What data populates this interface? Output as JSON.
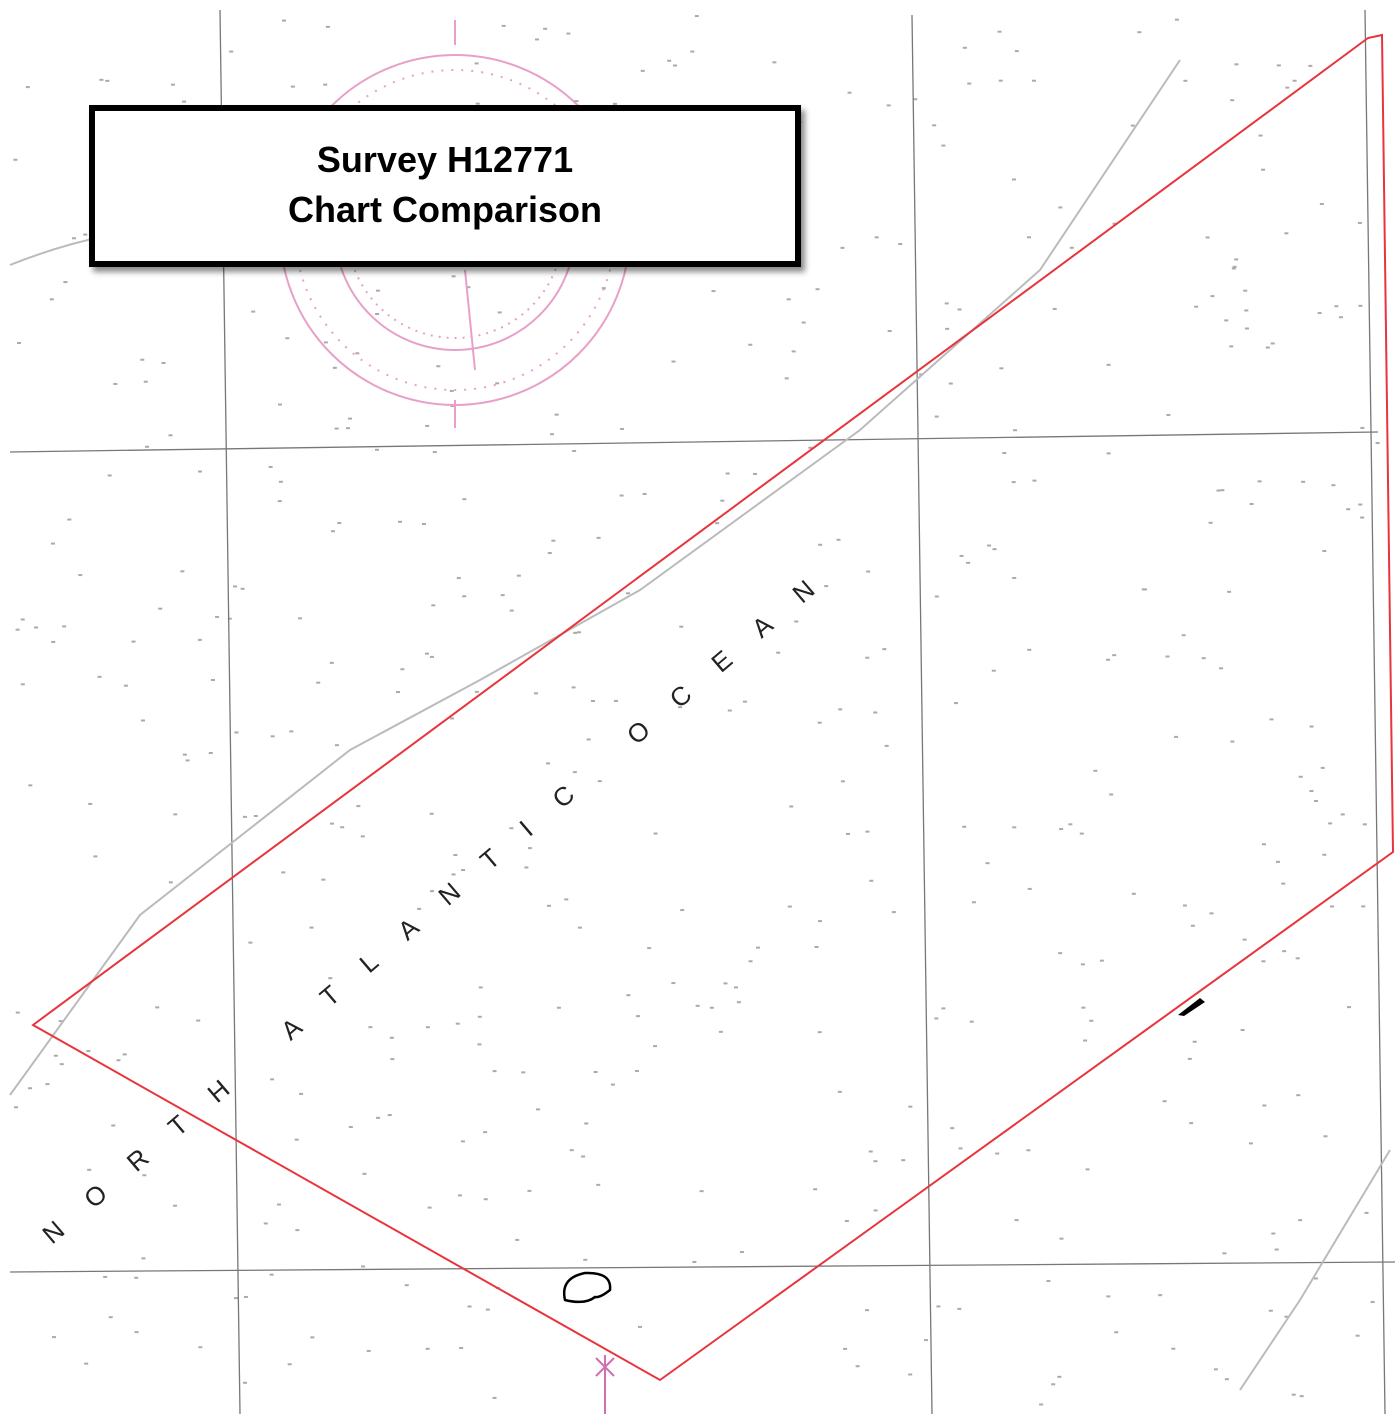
{
  "header": {
    "title_lines": [
      "Survey H12771",
      "Chart Comparison"
    ]
  },
  "map": {
    "label": "NORTH ATLANTIC OCEAN"
  }
}
